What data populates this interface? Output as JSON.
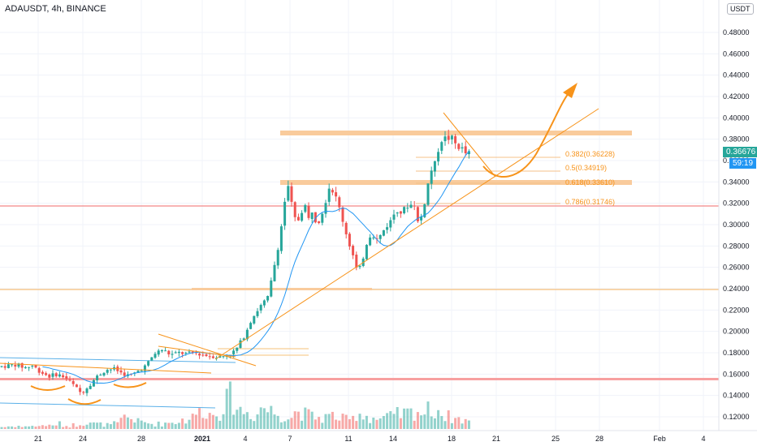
{
  "header": {
    "title": "ADAUSDT, 4h, BINANCE"
  },
  "price_axis": {
    "currency": "USDT",
    "ticks": [
      "0.48000",
      "0.46000",
      "0.44000",
      "0.42000",
      "0.40000",
      "0.38000",
      "0.36000",
      "0.34000",
      "0.32000",
      "0.30000",
      "0.28000",
      "0.26000",
      "0.24000",
      "0.22000",
      "0.20000",
      "0.18000",
      "0.16000",
      "0.14000",
      "0.12000"
    ],
    "last_price": "0.36676",
    "countdown": "59:19",
    "last_price_color": "#26a69a",
    "countdown_color": "#2196f3"
  },
  "time_axis": {
    "ticks": [
      "21",
      "24",
      "28",
      "2021",
      "4",
      "7",
      "11",
      "14",
      "18",
      "21",
      "25",
      "28",
      "Feb",
      "4"
    ]
  },
  "fib_levels": [
    "0.382(0.36228)",
    "0.5(0.34919)",
    "0.618(0.33610)",
    "0.786(0.31746)"
  ],
  "colors": {
    "up": "#26a69a",
    "down": "#ef5350",
    "ma": "#2196f3",
    "drawing": "#f7931a",
    "zone": "#f9cb9c",
    "hline": "#f06a6a"
  },
  "chart_data": {
    "type": "candlestick",
    "symbol": "ADAUSDT",
    "interval": "4h",
    "ylim": [
      0.11,
      0.5
    ],
    "close_path": [
      [
        0,
        0.167
      ],
      [
        10,
        0.168
      ],
      [
        20,
        0.169
      ],
      [
        30,
        0.166
      ],
      [
        40,
        0.168
      ],
      [
        50,
        0.162
      ],
      [
        60,
        0.158
      ],
      [
        70,
        0.16
      ],
      [
        80,
        0.157
      ],
      [
        90,
        0.15
      ],
      [
        100,
        0.142
      ],
      [
        110,
        0.15
      ],
      [
        120,
        0.158
      ],
      [
        130,
        0.164
      ],
      [
        140,
        0.165
      ],
      [
        150,
        0.161
      ],
      [
        160,
        0.158
      ],
      [
        170,
        0.163
      ],
      [
        180,
        0.168
      ],
      [
        190,
        0.179
      ],
      [
        200,
        0.183
      ],
      [
        210,
        0.178
      ],
      [
        220,
        0.18
      ],
      [
        230,
        0.179
      ],
      [
        240,
        0.18
      ],
      [
        250,
        0.178
      ],
      [
        260,
        0.177
      ],
      [
        270,
        0.176
      ],
      [
        280,
        0.178
      ],
      [
        290,
        0.182
      ],
      [
        300,
        0.195
      ],
      [
        310,
        0.212
      ],
      [
        320,
        0.223
      ],
      [
        330,
        0.232
      ],
      [
        340,
        0.27
      ],
      [
        345,
        0.29
      ],
      [
        350,
        0.32
      ],
      [
        355,
        0.335
      ],
      [
        360,
        0.315
      ],
      [
        365,
        0.3
      ],
      [
        370,
        0.31
      ],
      [
        375,
        0.32
      ],
      [
        380,
        0.305
      ],
      [
        385,
        0.315
      ],
      [
        390,
        0.3
      ],
      [
        395,
        0.308
      ],
      [
        400,
        0.32
      ],
      [
        405,
        0.335
      ],
      [
        410,
        0.332
      ],
      [
        415,
        0.322
      ],
      [
        420,
        0.31
      ],
      [
        425,
        0.295
      ],
      [
        430,
        0.282
      ],
      [
        435,
        0.27
      ],
      [
        440,
        0.255
      ],
      [
        445,
        0.262
      ],
      [
        450,
        0.28
      ],
      [
        455,
        0.29
      ],
      [
        460,
        0.29
      ],
      [
        465,
        0.285
      ],
      [
        470,
        0.292
      ],
      [
        475,
        0.298
      ],
      [
        480,
        0.302
      ],
      [
        485,
        0.31
      ],
      [
        490,
        0.315
      ],
      [
        495,
        0.31
      ],
      [
        500,
        0.318
      ],
      [
        505,
        0.318
      ],
      [
        510,
        0.32
      ],
      [
        515,
        0.3
      ],
      [
        520,
        0.31
      ],
      [
        525,
        0.33
      ],
      [
        530,
        0.35
      ],
      [
        535,
        0.355
      ],
      [
        540,
        0.372
      ],
      [
        545,
        0.382
      ],
      [
        550,
        0.38
      ],
      [
        555,
        0.382
      ],
      [
        560,
        0.376
      ],
      [
        565,
        0.373
      ],
      [
        570,
        0.37
      ],
      [
        575,
        0.365
      ],
      [
        578,
        0.367
      ]
    ],
    "volume_path": [
      0.2,
      0.25,
      0.3,
      0.2,
      0.35,
      0.25,
      0.4,
      0.3,
      0.5,
      0.35,
      0.3,
      0.4,
      0.6,
      0.7,
      0.5,
      0.45,
      0.4,
      0.5,
      0.8,
      1.2,
      1.0,
      0.7,
      0.6,
      0.5,
      0.5,
      0.6,
      0.7,
      0.8,
      0.9,
      1.1,
      1.6,
      2.0,
      1.4,
      1.8,
      2.6,
      3.0,
      2.2,
      1.8,
      1.6,
      1.4,
      2.2,
      1.8,
      1.6,
      1.4,
      1.2,
      1.6,
      1.8,
      1.4,
      1.2,
      1.1,
      1.2,
      1.3,
      1.0,
      0.9,
      1.0,
      1.6,
      1.3,
      1.1,
      1.0,
      1.1,
      1.2,
      1.4,
      1.5,
      1.6,
      1.8,
      1.6,
      1.8,
      2.0,
      1.4,
      1.2,
      1.0,
      0.9,
      0.8
    ]
  }
}
